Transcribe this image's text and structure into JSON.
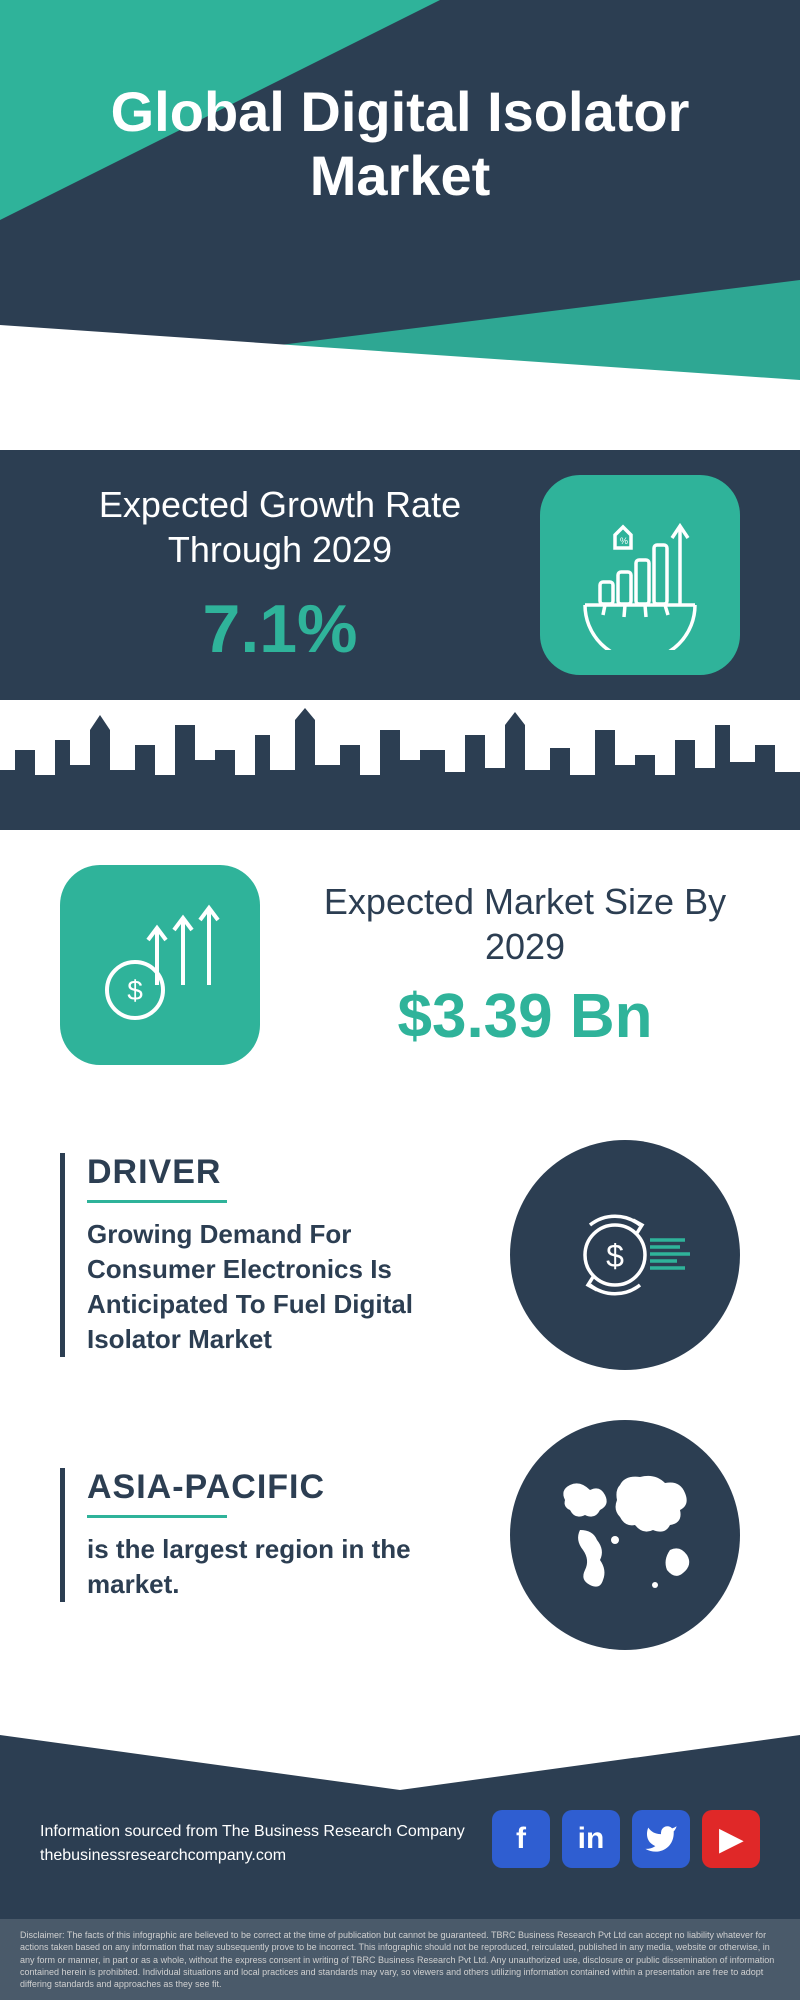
{
  "colors": {
    "navy": "#2c3e52",
    "teal": "#2fb39a",
    "white": "#ffffff",
    "disclaimer_bg": "#4a5a6a",
    "disclaimer_text": "#d0d0d0"
  },
  "hero": {
    "title": "Global Digital Isolator Market"
  },
  "growth": {
    "label": "Expected Growth Rate Through 2029",
    "value": "7.1%"
  },
  "market_size": {
    "label": "Expected Market Size By 2029",
    "value": "$3.39 Bn"
  },
  "driver": {
    "heading": "DRIVER",
    "body": "Growing Demand For Consumer Electronics Is Anticipated To Fuel Digital Isolator Market"
  },
  "region": {
    "heading": "ASIA-PACIFIC",
    "body": "is the largest region in the market."
  },
  "footer": {
    "source_line1": "Information sourced from The Business Research Company",
    "source_line2": "thebusinessresearchcompany.com",
    "social": [
      {
        "name": "facebook",
        "glyph": "f",
        "bg": "#2f5ed1"
      },
      {
        "name": "linkedin",
        "glyph": "in",
        "bg": "#2f5ed1"
      },
      {
        "name": "twitter",
        "glyph": "𝕏",
        "bg": "#2f5ed1",
        "twitter": true
      },
      {
        "name": "youtube",
        "glyph": "▶",
        "bg": "#e02828"
      }
    ],
    "disclaimer": "Disclaimer: The facts of this infographic are believed to be correct at the time of publication but cannot be guaranteed. TBRC Business Research Pvt Ltd can accept no liability whatever for actions taken based on any information that may subsequently prove to be incorrect. This infographic should not be reproduced, reirculated, published in any media, website or otherwise, in any form or manner, in part or as a whole, without the express consent in writing of TBRC Business Research Pvt Ltd. Any unauthorized use, disclosure or public dissemination of information contained herein is prohibited. Individual situations and local practices and standards may vary, so viewers and others utilizing information contained within a presentation are free to adopt differing standards and approaches as they see fit."
  }
}
